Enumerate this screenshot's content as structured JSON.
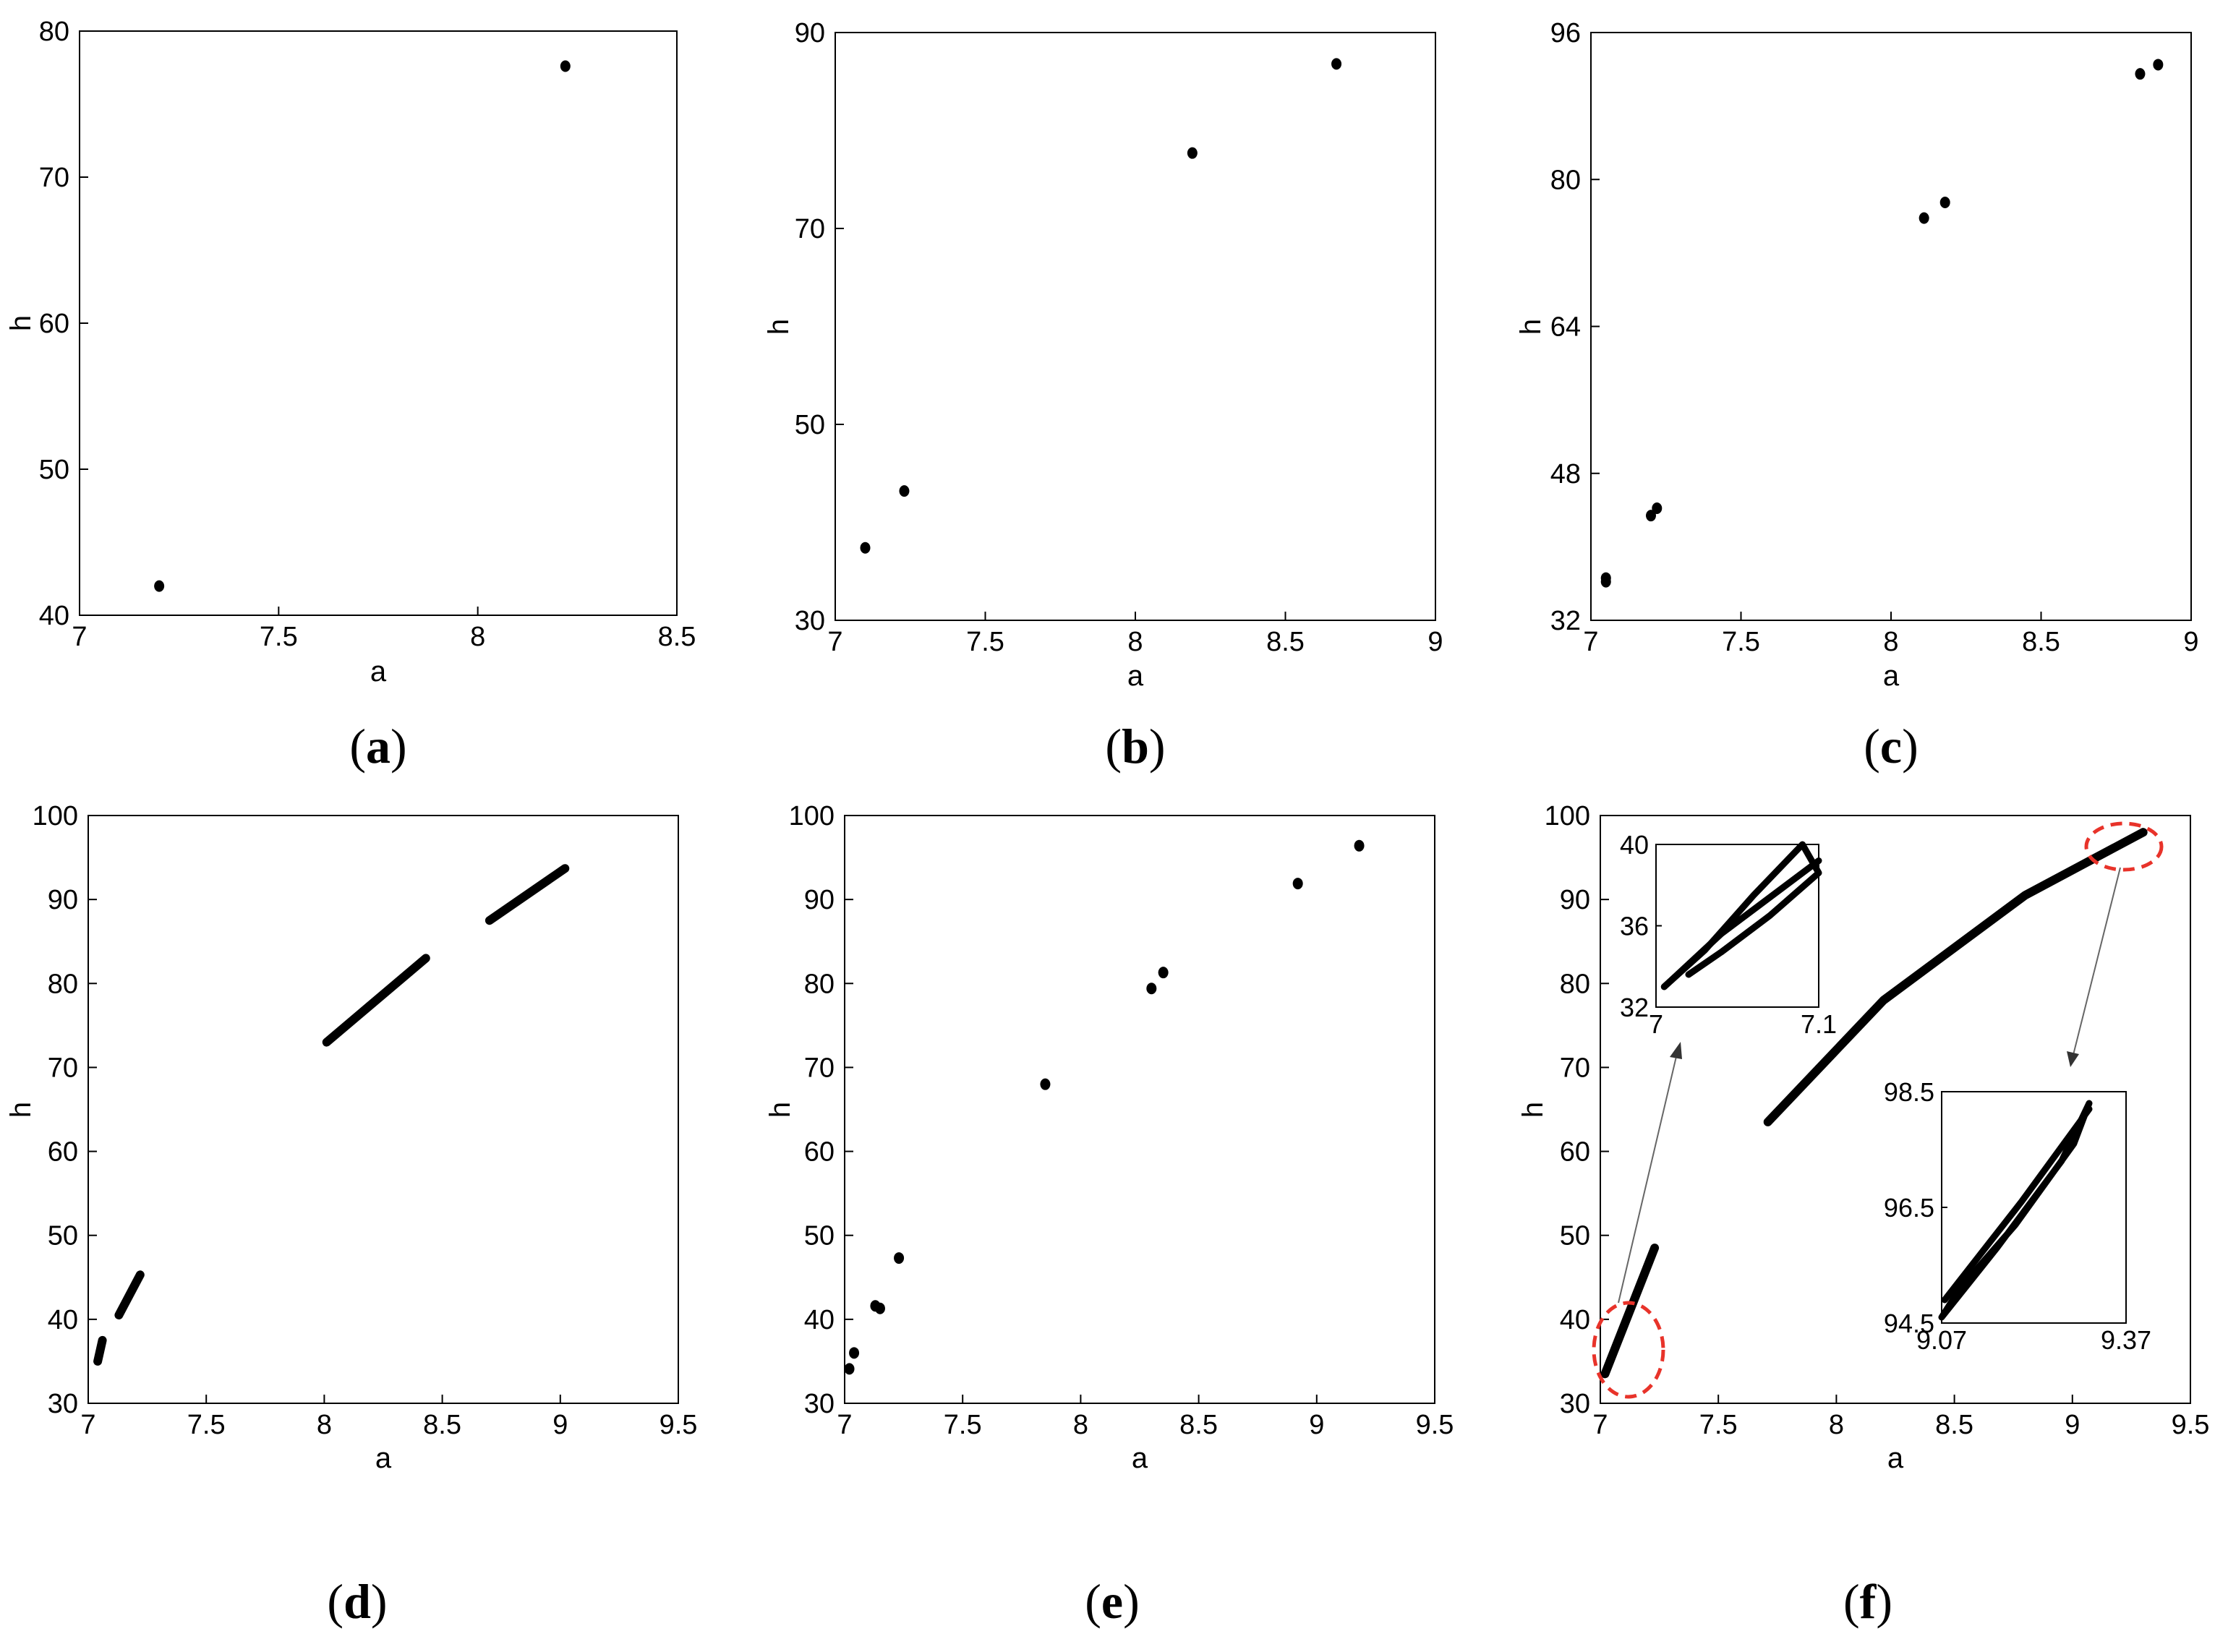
{
  "figure": {
    "background": "#ffffff",
    "marker_color": "#000000",
    "highlight_color": "#e8332a"
  },
  "chart_data": [
    {
      "id": "a",
      "type": "scatter",
      "caption": {
        "open": "(",
        "letter": "a",
        "close": ")"
      },
      "xlabel": "a",
      "ylabel": "h",
      "xlim": [
        7,
        8.5
      ],
      "ylim": [
        40,
        80
      ],
      "xticks": [
        "7",
        "7.5",
        "8",
        "8.5"
      ],
      "yticks": [
        "40",
        "50",
        "60",
        "70",
        "80"
      ],
      "series": [
        {
          "points": [
            [
              7.2,
              42.0
            ],
            [
              8.22,
              77.6
            ]
          ]
        }
      ]
    },
    {
      "id": "b",
      "type": "scatter",
      "caption": {
        "open": "(",
        "letter": "b",
        "close": ")"
      },
      "xlabel": "a",
      "ylabel": "h",
      "xlim": [
        7,
        9
      ],
      "ylim": [
        30,
        90
      ],
      "xticks": [
        "7",
        "7.5",
        "8",
        "8.5",
        "9"
      ],
      "yticks": [
        "30",
        "50",
        "70",
        "90"
      ],
      "series": [
        {
          "points": [
            [
              7.1,
              37.4
            ],
            [
              7.23,
              43.2
            ],
            [
              8.19,
              77.7
            ],
            [
              8.67,
              86.8
            ]
          ]
        }
      ]
    },
    {
      "id": "c",
      "type": "scatter",
      "caption": {
        "open": "(",
        "letter": "c",
        "close": ")"
      },
      "xlabel": "a",
      "ylabel": "h",
      "xlim": [
        7,
        9
      ],
      "ylim": [
        32,
        96
      ],
      "xticks": [
        "7",
        "7.5",
        "8",
        "8.5",
        "9"
      ],
      "yticks": [
        "32",
        "48",
        "64",
        "80",
        "96"
      ],
      "series": [
        {
          "points": [
            [
              7.05,
              36.6
            ],
            [
              7.05,
              36.2
            ],
            [
              7.2,
              43.4
            ],
            [
              7.22,
              44.2
            ],
            [
              8.11,
              75.8
            ],
            [
              8.18,
              77.5
            ],
            [
              8.83,
              91.5
            ],
            [
              8.89,
              92.5
            ]
          ]
        }
      ]
    },
    {
      "id": "d",
      "type": "scatter",
      "caption": {
        "open": "(",
        "letter": "d",
        "close": ")"
      },
      "xlabel": "a",
      "ylabel": "h",
      "xlim": [
        7,
        9.5
      ],
      "ylim": [
        30,
        100
      ],
      "xticks": [
        "7",
        "7.5",
        "8",
        "8.5",
        "9",
        "9.5"
      ],
      "yticks": [
        "30",
        "40",
        "50",
        "60",
        "70",
        "80",
        "90",
        "100"
      ],
      "series": [
        {
          "segments": [
            [
              [
                7.04,
                35.0
              ],
              [
                7.06,
                37.5
              ]
            ],
            [
              [
                7.13,
                40.5
              ],
              [
                7.22,
                45.3
              ]
            ],
            [
              [
                8.01,
                73.0
              ],
              [
                8.43,
                83.0
              ]
            ],
            [
              [
                8.7,
                87.5
              ],
              [
                9.02,
                93.7
              ]
            ]
          ]
        }
      ]
    },
    {
      "id": "e",
      "type": "scatter",
      "caption": {
        "open": "(",
        "letter": "e",
        "close": ")"
      },
      "xlabel": "a",
      "ylabel": "h",
      "xlim": [
        7,
        9.5
      ],
      "ylim": [
        30,
        100
      ],
      "xticks": [
        "7",
        "7.5",
        "8",
        "8.5",
        "9",
        "9.5"
      ],
      "yticks": [
        "30",
        "40",
        "50",
        "60",
        "70",
        "80",
        "90",
        "100"
      ],
      "series": [
        {
          "points": [
            [
              7.02,
              34.1
            ],
            [
              7.04,
              36.0
            ],
            [
              7.13,
              41.6
            ],
            [
              7.15,
              41.3
            ],
            [
              7.23,
              47.3
            ],
            [
              7.85,
              68.0
            ],
            [
              8.3,
              79.4
            ],
            [
              8.35,
              81.3
            ],
            [
              8.92,
              91.9
            ],
            [
              9.18,
              96.4
            ]
          ]
        }
      ]
    },
    {
      "id": "f",
      "type": "scatter",
      "caption": {
        "open": "(",
        "letter": "f",
        "close": ")"
      },
      "xlabel": "a",
      "ylabel": "h",
      "xlim": [
        7,
        9.5
      ],
      "ylim": [
        30,
        100
      ],
      "xticks": [
        "7",
        "7.5",
        "8",
        "8.5",
        "9",
        "9.5"
      ],
      "yticks": [
        "30",
        "40",
        "50",
        "60",
        "70",
        "80",
        "90",
        "100"
      ],
      "series": [
        {
          "segments": [
            [
              [
                7.02,
                33.5
              ],
              [
                7.23,
                48.5
              ]
            ],
            [
              [
                7.71,
                63.5
              ],
              [
                8.2,
                78.0
              ],
              [
                8.8,
                90.5
              ],
              [
                9.3,
                98.0
              ]
            ]
          ]
        }
      ],
      "insets": [
        {
          "id": "f-inset-left",
          "type": "scatter",
          "xlim": [
            7,
            7.1
          ],
          "ylim": [
            32,
            40
          ],
          "xticks": [
            "7",
            "7.1"
          ],
          "yticks": [
            "32",
            "36",
            "40"
          ],
          "loops": [
            [
              [
                7.005,
                33.0
              ],
              [
                7.03,
                34.8
              ],
              [
                7.06,
                37.5
              ],
              [
                7.09,
                40.0
              ],
              [
                7.1,
                38.6
              ],
              [
                7.07,
                36.5
              ],
              [
                7.04,
                34.7
              ],
              [
                7.02,
                33.6
              ]
            ],
            [
              [
                7.005,
                33.0
              ],
              [
                7.04,
                35.6
              ],
              [
                7.1,
                39.2
              ]
            ]
          ]
        },
        {
          "id": "f-inset-right",
          "type": "scatter",
          "xlim": [
            9.07,
            9.37
          ],
          "ylim": [
            94.5,
            98.5
          ],
          "xticks": [
            "9.07",
            "9.37"
          ],
          "yticks": [
            "94.5",
            "96.5",
            "98.5"
          ],
          "loops": [
            [
              [
                9.07,
                94.6
              ],
              [
                9.16,
                95.8
              ],
              [
                9.265,
                97.3
              ],
              [
                9.31,
                98.3
              ],
              [
                9.285,
                97.6
              ],
              [
                9.19,
                96.2
              ],
              [
                9.1,
                95.1
              ],
              [
                9.07,
                94.6
              ]
            ],
            [
              [
                9.075,
                94.9
              ],
              [
                9.2,
                96.6
              ],
              [
                9.31,
                98.2
              ]
            ]
          ]
        }
      ]
    }
  ]
}
